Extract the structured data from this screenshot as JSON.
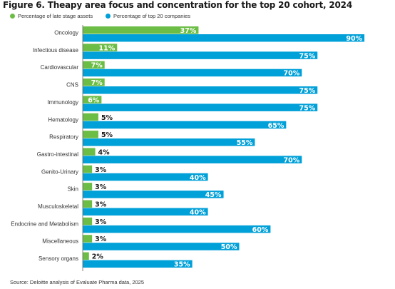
{
  "chart_data": {
    "type": "bar",
    "orientation": "horizontal",
    "title": "Figure 6. Theapy area focus and concentration for the top 20 cohort, 2024",
    "legend_position": "top-left",
    "grid": false,
    "xlim": [
      0,
      100
    ],
    "categories": [
      "Oncology",
      "Infectious disease",
      "Cardiovascular",
      "CNS",
      "Immunology",
      "Hematology",
      "Respiratory",
      "Gastro-intestinal",
      "Genito-Urinary",
      "Skin",
      "Musculoskeletal",
      "Endocrine and Metabolism",
      "Miscellaneous",
      "Sensory organs"
    ],
    "series": [
      {
        "name": "Percentage of late stage assets",
        "color": "#6cbd45",
        "values": [
          37,
          11,
          7,
          7,
          6,
          5,
          5,
          4,
          3,
          3,
          3,
          3,
          3,
          2
        ],
        "labels": [
          "37%",
          "11%",
          "7%",
          "7%",
          "6%",
          "5%",
          "5%",
          "4%",
          "3%",
          "3%",
          "3%",
          "3%",
          "3%",
          "2%"
        ]
      },
      {
        "name": "Percentage of top 20 companies",
        "color": "#00a0d8",
        "values": [
          90,
          75,
          70,
          75,
          75,
          65,
          55,
          70,
          40,
          45,
          40,
          60,
          50,
          35
        ],
        "labels": [
          "90%",
          "75%",
          "70%",
          "75%",
          "75%",
          "65%",
          "55%",
          "70%",
          "40%",
          "45%",
          "40%",
          "60%",
          "50%",
          "35%"
        ]
      }
    ],
    "source": "Source: Deloitte analysis of Evaluate Pharma data, 2025"
  }
}
